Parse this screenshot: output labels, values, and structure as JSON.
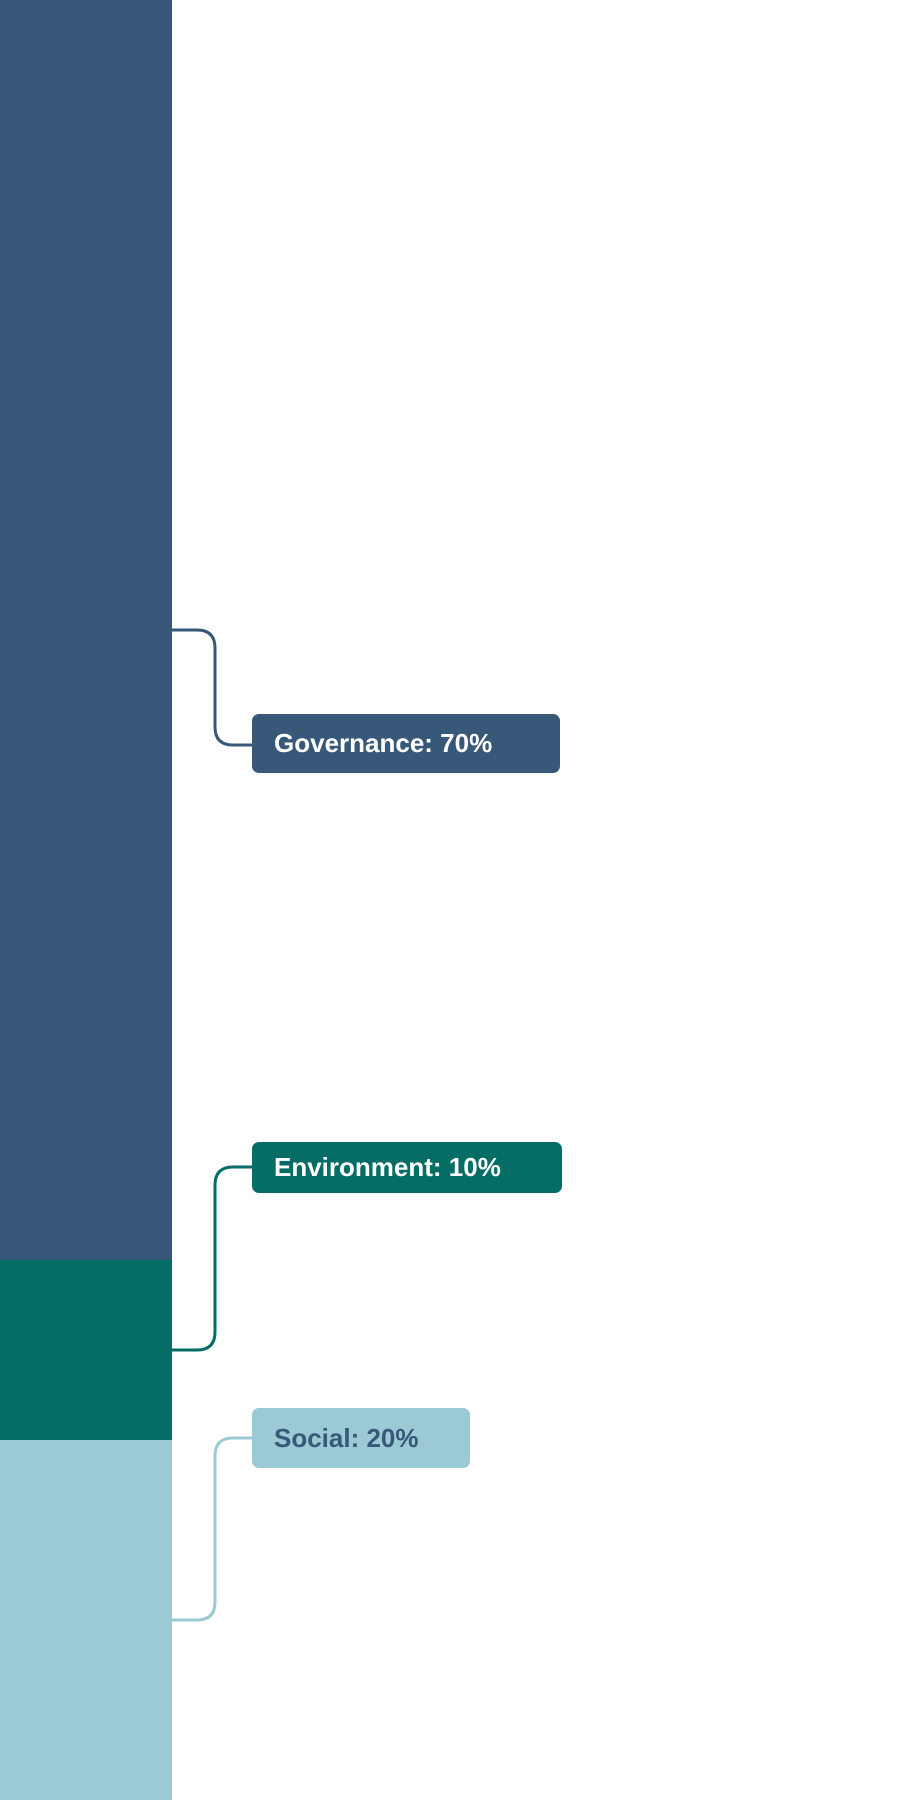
{
  "chart_data": {
    "type": "stacked-bar",
    "orientation": "vertical",
    "ylim": [
      0,
      100
    ],
    "segments": [
      {
        "name": "Governance",
        "value": 70,
        "label": "Governance: 70%",
        "color": "#375878",
        "text_color": "#ffffff"
      },
      {
        "name": "Environment",
        "value": 10,
        "label": "Environment: 10%",
        "color": "#056c66",
        "text_color": "#ffffff"
      },
      {
        "name": "Social",
        "value": 20,
        "label": "Social: 20%",
        "color": "#9bc9d4",
        "text_color": "#375878"
      }
    ]
  }
}
